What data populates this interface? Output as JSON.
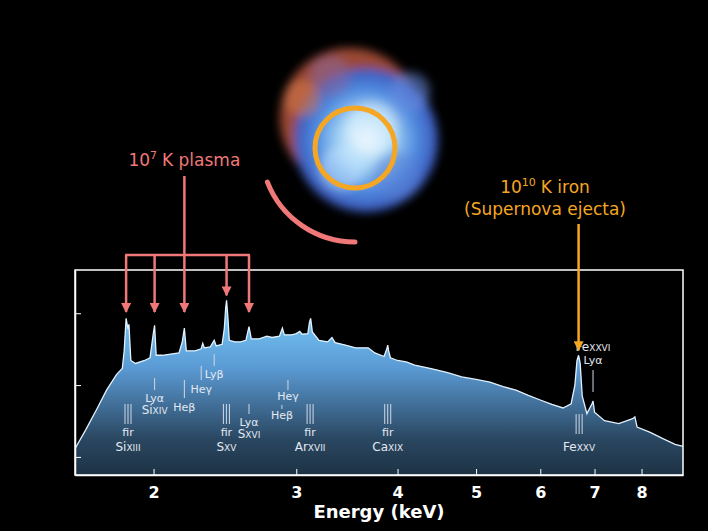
{
  "chart_data": {
    "type": "area",
    "x_label": "Energy (keV)",
    "color": "#5b9bd5",
    "log": true,
    "tick_labels": "x",
    "xlim": [
      1.6,
      9.0
    ],
    "xticks": [
      2,
      3,
      4,
      5,
      6,
      7,
      8
    ],
    "ylim": [
      0.56,
      400
    ],
    "yticks": [
      1,
      10,
      100
    ],
    "x": [
      1.6,
      1.65,
      1.7,
      1.75,
      1.8,
      1.83,
      1.84,
      1.85,
      1.86,
      1.865,
      1.875,
      1.9,
      1.95,
      1.98,
      2.0,
      2.006,
      2.015,
      2.05,
      2.1,
      2.15,
      2.17,
      2.183,
      2.195,
      2.25,
      2.29,
      2.3,
      2.31,
      2.35,
      2.376,
      2.39,
      2.43,
      2.445,
      2.455,
      2.461,
      2.47,
      2.48,
      2.52,
      2.56,
      2.6,
      2.623,
      2.64,
      2.7,
      2.76,
      2.8,
      2.86,
      2.884,
      2.9,
      2.96,
      3.0,
      3.03,
      3.05,
      3.1,
      3.115,
      3.125,
      3.14,
      3.2,
      3.28,
      3.32,
      3.35,
      3.45,
      3.55,
      3.68,
      3.75,
      3.85,
      3.88,
      3.89,
      3.9,
      3.92,
      4.0,
      4.1,
      4.2,
      4.4,
      4.6,
      4.8,
      5.0,
      5.2,
      5.4,
      5.6,
      5.8,
      6.0,
      6.2,
      6.4,
      6.55,
      6.62,
      6.66,
      6.69,
      6.72,
      6.76,
      6.85,
      6.95,
      6.97,
      7.0,
      7.2,
      7.5,
      7.8,
      7.85,
      7.9,
      8.2,
      8.5,
      8.8,
      9.0
    ],
    "values": [
      1.3,
      2.4,
      4.5,
      8.5,
      14,
      17,
      30,
      85,
      60,
      70,
      22,
      20,
      22,
      24,
      55,
      68,
      26,
      26,
      27,
      28,
      40,
      62,
      30,
      30,
      32,
      38,
      33,
      34,
      42,
      35,
      37,
      60,
      120,
      151,
      90,
      42,
      40,
      40,
      42,
      65,
      44,
      44,
      48,
      46,
      48,
      62,
      50,
      50,
      52,
      56,
      51,
      52,
      75,
      85,
      55,
      42,
      40,
      46,
      39,
      36,
      33,
      33,
      28,
      25,
      32,
      36,
      30,
      24,
      22,
      21,
      19,
      17,
      15,
      13,
      12,
      11,
      9.5,
      8.5,
      7.2,
      6.2,
      5.4,
      4.8,
      5.5,
      10,
      22,
      26,
      20,
      7,
      4.0,
      5.5,
      6.0,
      4.2,
      3.2,
      2.9,
      3.4,
      3.6,
      2.6,
      2.2,
      1.8,
      1.5,
      1.4
    ],
    "line_labels": [
      {
        "energy": 1.86,
        "transition": "fir",
        "ion": "Si",
        "stage": "XIII"
      },
      {
        "energy": 2.006,
        "transition": "Lyα",
        "ion": "Si",
        "stage": "XIV"
      },
      {
        "energy": 2.183,
        "transition": "Heβ"
      },
      {
        "energy": 2.29,
        "transition": "Heγ"
      },
      {
        "energy": 2.376,
        "transition": "Lyβ"
      },
      {
        "energy": 2.46,
        "transition": "fir",
        "ion": "S",
        "stage": "XV"
      },
      {
        "energy": 2.623,
        "transition": "Lyα",
        "ion": "S",
        "stage": "XVI"
      },
      {
        "energy": 2.93,
        "transition": "Heγ"
      },
      {
        "energy": 2.88,
        "transition": "Heβ"
      },
      {
        "energy": 3.12,
        "transition": "fir",
        "ion": "Ar",
        "stage": "XVII"
      },
      {
        "energy": 3.89,
        "transition": "fir",
        "ion": "Ca",
        "stage": "XIX"
      },
      {
        "energy": 6.7,
        "ion": "Fe",
        "stage": "XXV"
      },
      {
        "energy": 6.97,
        "transition": "Lyα",
        "ion": "Fe",
        "stage": "XXVI"
      }
    ],
    "plasma_label": {
      "base": "10",
      "exponent": "7",
      "text": "K plasma",
      "color": "#f07878",
      "targets": [
        1.85,
        2.006,
        2.183,
        2.461,
        2.623
      ]
    },
    "ejecta_label": {
      "base": "10",
      "exponent": "10",
      "text": "K iron",
      "subtext": "(Supernova ejecta)",
      "color": "#f5a623",
      "target": 6.69
    }
  }
}
